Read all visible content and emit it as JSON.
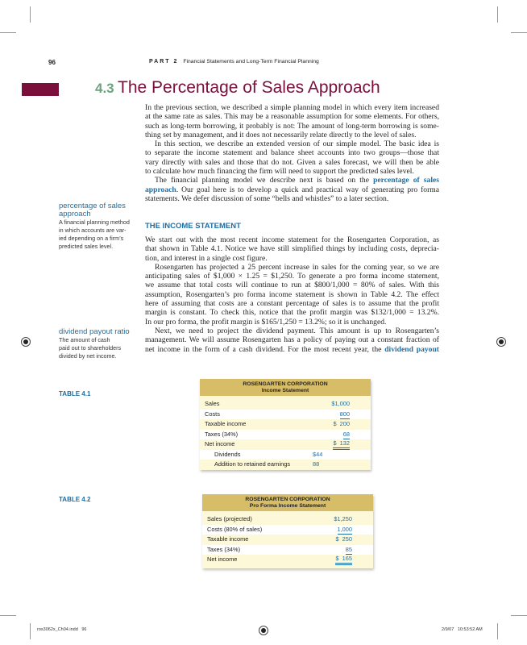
{
  "header": {
    "page_number": "96",
    "part_label": "PART 2",
    "part_title": "Financial Statements and Long-Term Financial Planning"
  },
  "section": {
    "number": "4.3",
    "title": "The Percentage of Sales Approach",
    "accent_color": "#7a0f3c",
    "number_color": "#6ba37c"
  },
  "intro": {
    "p1": [
      "In the previous section, we described a simple planning model in which every item increased",
      "at the same rate as sales. This may be a reasonable assumption for some elements. For others,",
      "such as long-term borrowing, it probably is not: The amount of long-term borrowing is some-",
      "thing set by management, and it does not necessarily relate directly to the level of sales."
    ],
    "p2": [
      "In this section, we describe an extended version of our simple model. The basic idea is",
      "to separate the income statement and balance sheet accounts into two groups—those that",
      "vary directly with sales and those that do not. Given a sales forecast, we will then be able",
      "to calculate how much financing the firm will need to support the predicted sales level."
    ],
    "p3_line1_pre": "The financial planning model we describe next is based on the",
    "p3_term1": "percentage of sales",
    "p3_term2": "approach",
    "p3_line2_post": ". Our goal here is to develop a quick and practical way of generating pro forma",
    "p3_line3": "statements. We defer discussion of some “bells and whistles” to a later section."
  },
  "income_statement": {
    "heading": "THE INCOME STATEMENT",
    "p1": [
      "We start out with the most recent income statement for the Rosengarten Corporation, as",
      "that shown in Table 4.1. Notice we have still simplified things by including costs, deprecia-",
      "tion, and interest in a single cost figure."
    ],
    "p2": [
      "Rosengarten has projected a 25 percent increase in sales for the coming year, so we are",
      "anticipating sales of $1,000 × 1.25 = $1,250. To generate a pro forma income statement,",
      "we assume that total costs will continue to run at $800/1,000 = 80% of sales. With this",
      "assumption, Rosengarten’s pro forma income statement is shown in Table 4.2. The effect",
      "here of assuming that costs are a constant percentage of sales is to assume that the profit",
      "margin is constant. To check this, notice that the profit margin was $132/1,000 = 13.2%.",
      "In our pro forma, the profit margin is $165/1,250 = 13.2%; so it is unchanged."
    ],
    "p3": [
      "Next, we need to project the dividend payment. This amount is up to Rosengarten’s",
      "management. We will assume Rosengarten has a policy of paying out a constant fraction of"
    ],
    "p3_last_pre": "net income in the form of a cash dividend. For the most recent year, the",
    "p3_last_term": "dividend payout"
  },
  "margin_notes": [
    {
      "term_lines": [
        "percentage of sales",
        "approach"
      ],
      "definition_lines": [
        "A financial planning method",
        "in which accounts are var-",
        "ied depending on a firm’s",
        "predicted sales level."
      ]
    },
    {
      "term_lines": [
        "dividend payout ratio"
      ],
      "definition_lines": [
        "The amount of cash",
        "paid out to shareholders",
        "divided by net income."
      ]
    }
  ],
  "table1": {
    "label": "TABLE 4.1",
    "title": "ROSENGARTEN CORPORATION",
    "subtitle": "Income Statement",
    "rows": [
      {
        "label": "Sales",
        "value": "$1,000"
      },
      {
        "label": "Costs",
        "value": "800"
      },
      {
        "label": "Taxable income",
        "value": "$  200"
      },
      {
        "label": "Taxes (34%)",
        "value": "68"
      },
      {
        "label": "Net income",
        "value": "$  132"
      },
      {
        "label": "Dividends",
        "mid": "$44"
      },
      {
        "label": "Addition to retained earnings",
        "mid": "88"
      }
    ]
  },
  "table2": {
    "label": "TABLE 4.2",
    "title": "ROSENGARTEN CORPORATION",
    "subtitle": "Pro Forma Income Statement",
    "rows": [
      {
        "label": "Sales (projected)",
        "value": "$1,250"
      },
      {
        "label": "Costs (80% of sales)",
        "value": "1,000"
      },
      {
        "label": "Taxable income",
        "value": "$  250"
      },
      {
        "label": "Taxes (34%)",
        "value": "85"
      },
      {
        "label": "Net income",
        "value": "$  165"
      }
    ]
  },
  "footer": {
    "file": "ros3062x_Ch04.indd   96",
    "timestamp": "2/9/07   10:53:52 AM"
  },
  "colors": {
    "term_blue": "#1d6fa5",
    "table_header": "#d8bd68",
    "table_bg": "#fdf8d8"
  }
}
